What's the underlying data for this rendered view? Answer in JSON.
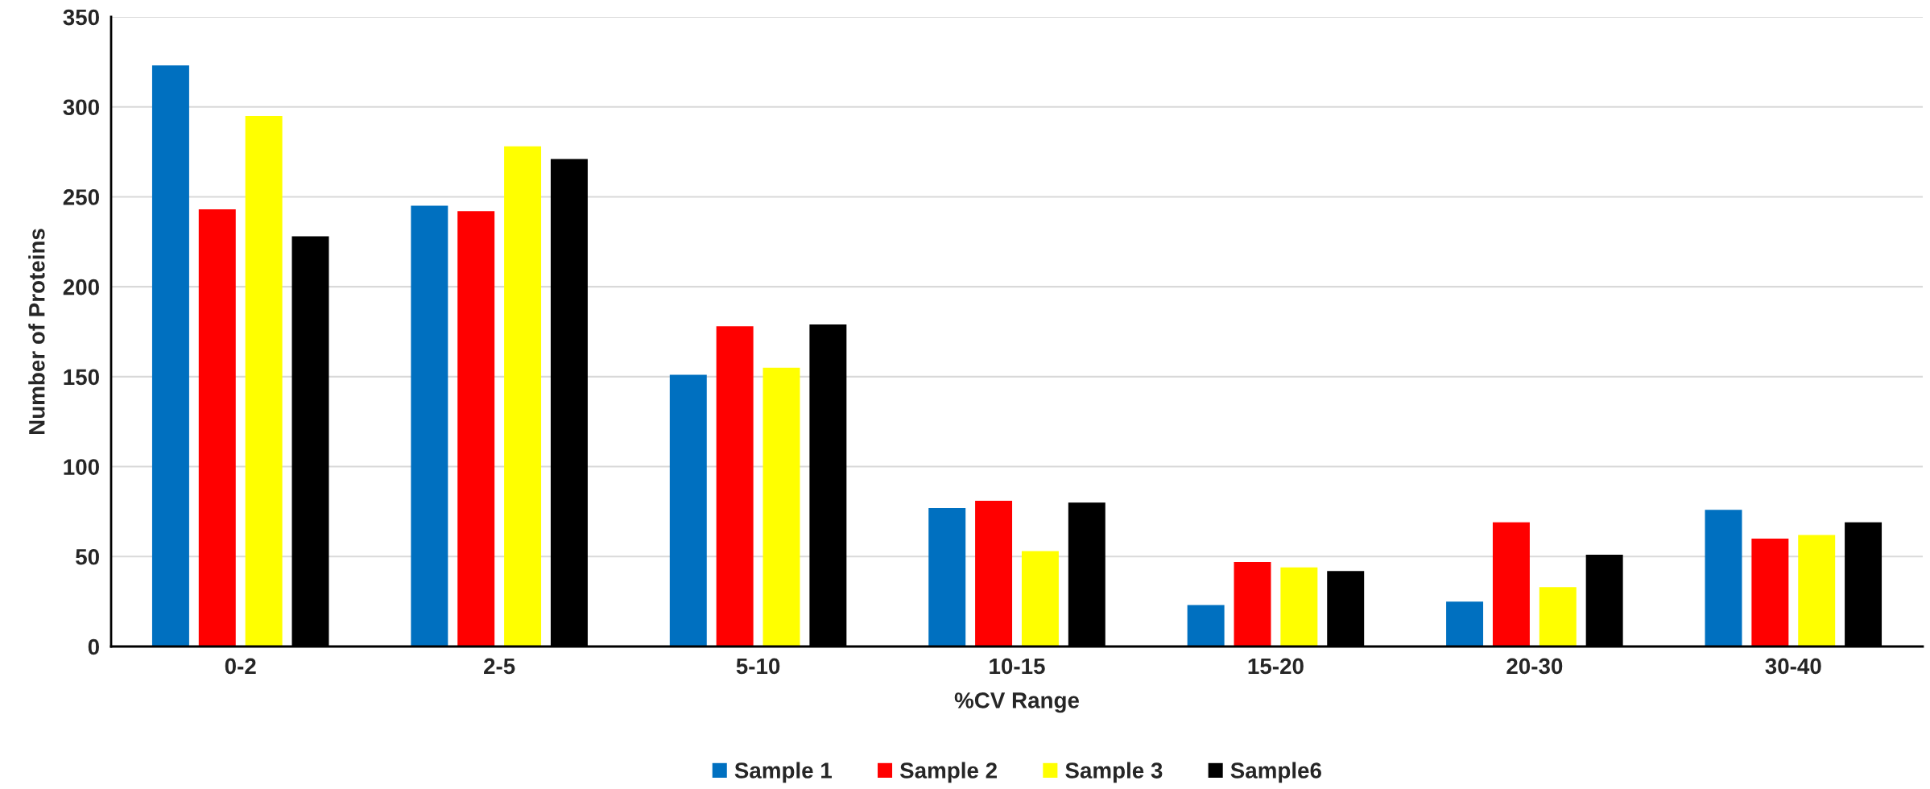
{
  "chart_data": {
    "type": "bar",
    "xlabel": "%CV Range",
    "ylabel": "Number of Proteins",
    "categories": [
      "0-2",
      "2-5",
      "5-10",
      "10-15",
      "15-20",
      "20-30",
      "30-40"
    ],
    "series": [
      {
        "name": "Sample 1",
        "color": "#0070c0",
        "values": [
          323,
          245,
          151,
          77,
          23,
          25,
          76
        ]
      },
      {
        "name": "Sample 2",
        "color": "#ff0000",
        "values": [
          243,
          242,
          178,
          81,
          47,
          69,
          60
        ]
      },
      {
        "name": "Sample 3",
        "color": "#ffff00",
        "values": [
          295,
          278,
          155,
          53,
          44,
          33,
          62
        ]
      },
      {
        "name": "Sample6",
        "color": "#000000",
        "values": [
          228,
          271,
          179,
          80,
          42,
          51,
          69
        ]
      }
    ],
    "ylim": [
      0,
      350
    ],
    "yticks": [
      0,
      50,
      100,
      150,
      200,
      250,
      300,
      350
    ],
    "grid": "y",
    "legend": "bottom"
  }
}
